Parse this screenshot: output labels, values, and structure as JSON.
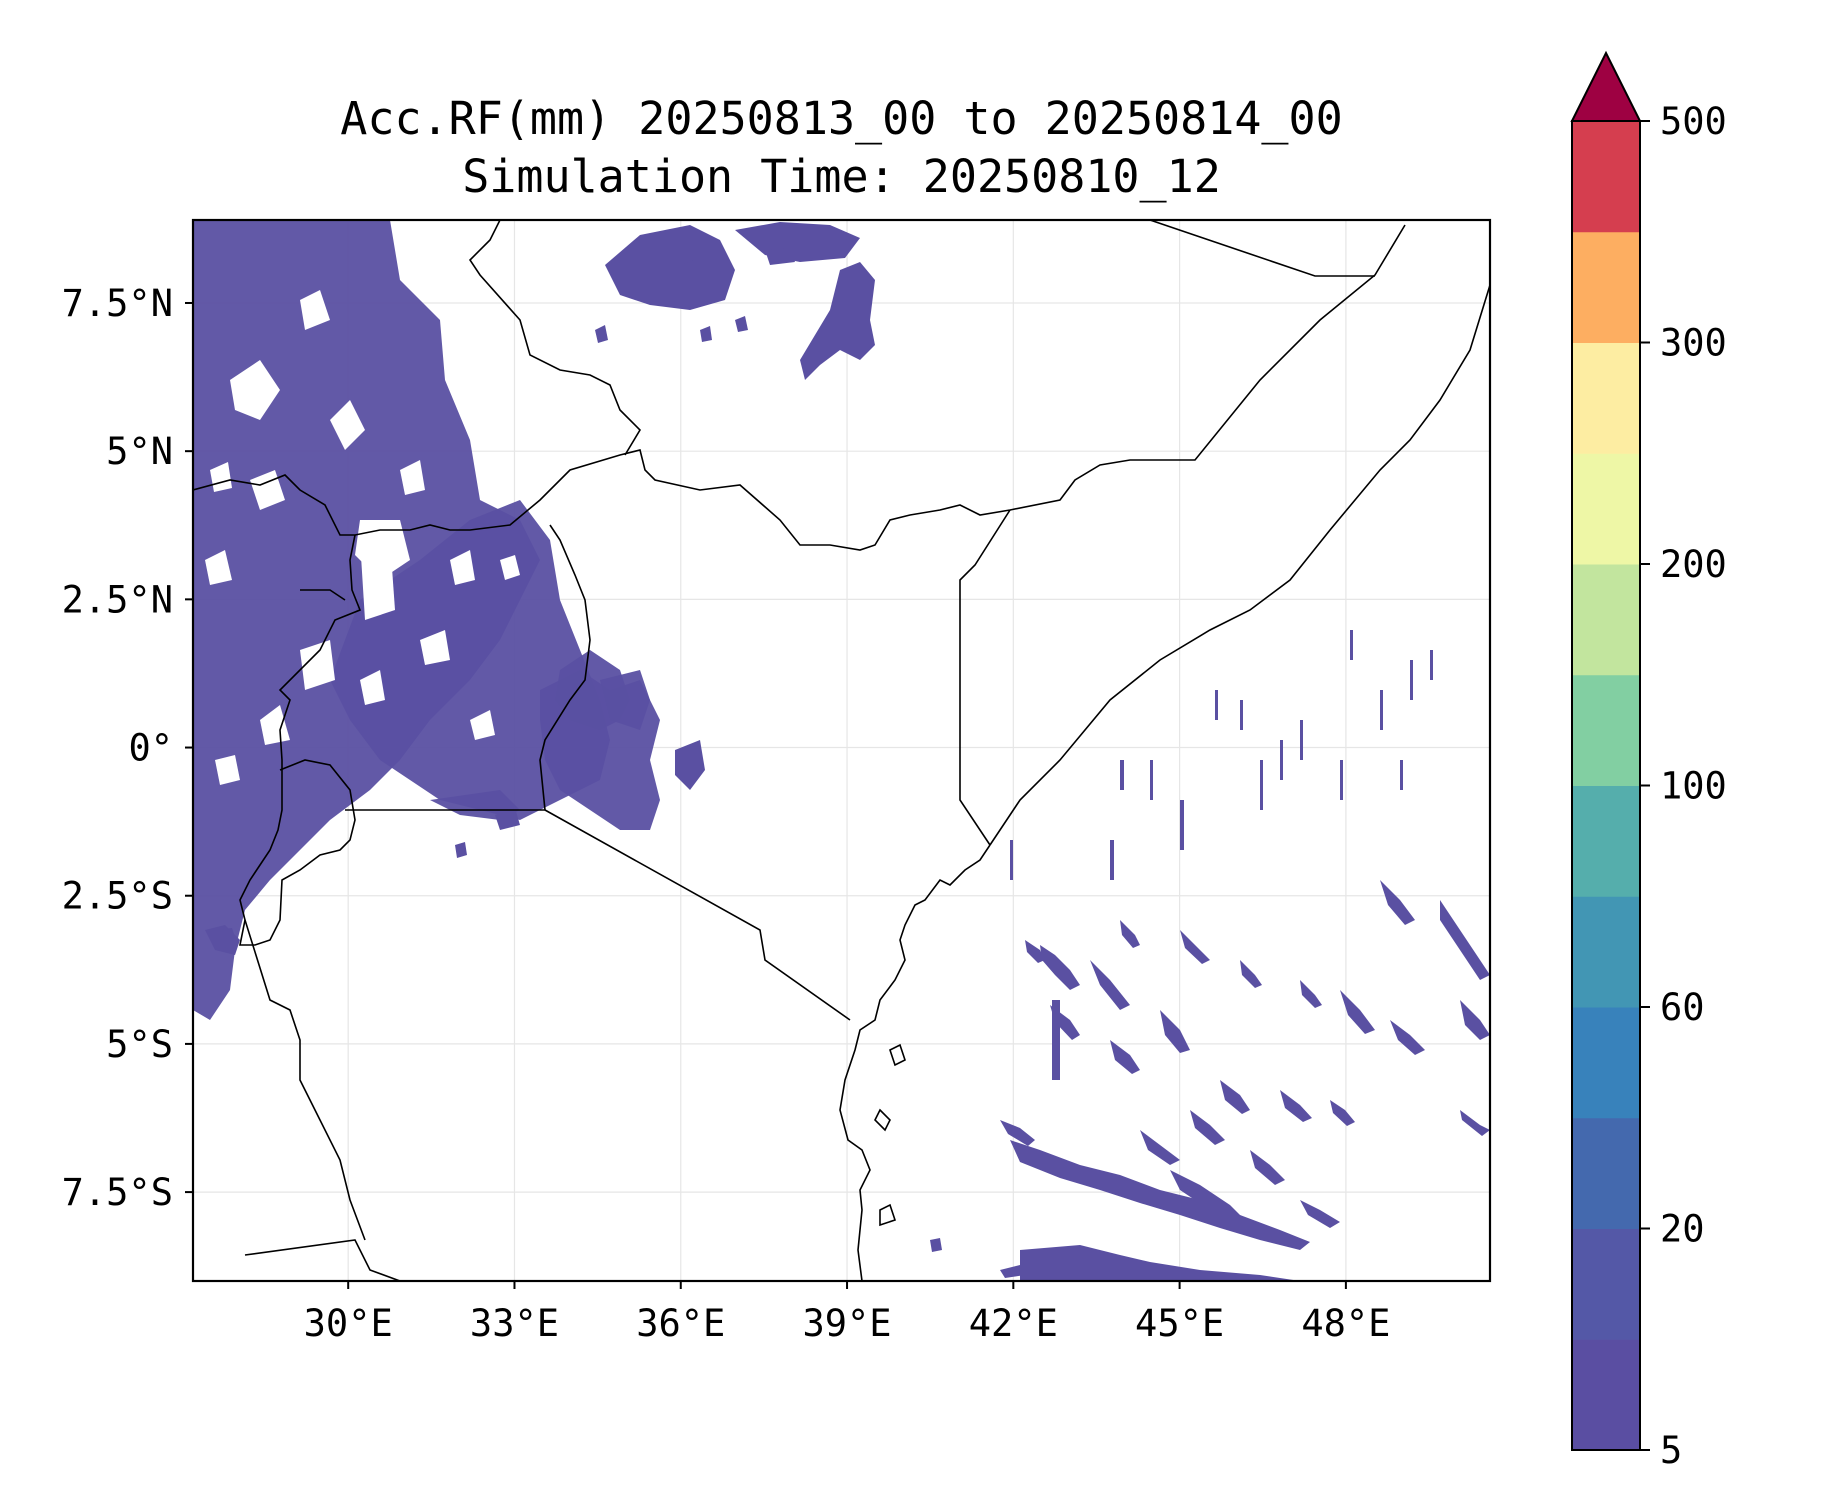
{
  "title_line1": "Acc.RF(mm) 20250813_00 to 20250814_00",
  "title_line2": "Simulation Time: 20250810_12",
  "map": {
    "lon_range": [
      27.2,
      50.6
    ],
    "lat_range": [
      -9.0,
      8.9
    ],
    "lon_ticks": [
      30,
      33,
      36,
      39,
      42,
      45,
      48
    ],
    "lon_tick_labels": [
      "30°E",
      "33°E",
      "36°E",
      "39°E",
      "42°E",
      "45°E",
      "48°E"
    ],
    "lat_ticks": [
      7.5,
      5,
      2.5,
      0,
      -2.5,
      -5,
      -7.5
    ],
    "lat_tick_labels": [
      "7.5°N",
      "5°N",
      "2.5°N",
      "0°",
      "2.5°S",
      "5°S",
      "7.5°S"
    ],
    "grid": true,
    "rain_color": "#5a50a2",
    "border_color": "#000000"
  },
  "colorbar": {
    "levels": [
      5,
      10,
      20,
      40,
      60,
      80,
      100,
      150,
      200,
      250,
      300,
      400,
      500
    ],
    "colors": [
      "#5a4ea2",
      "#5458a7",
      "#4469ae",
      "#3882bb",
      "#4296b4",
      "#55aeac",
      "#82cfa2",
      "#c2e59e",
      "#eef7a6",
      "#fdeda2",
      "#fdae61",
      "#d53e4f"
    ],
    "extend_color": "#9e0142",
    "tick_values": [
      5,
      20,
      60,
      100,
      200,
      300,
      500
    ],
    "tick_labels": [
      "5",
      "20",
      "60",
      "100",
      "200",
      "300",
      "500"
    ],
    "extend": "max"
  }
}
